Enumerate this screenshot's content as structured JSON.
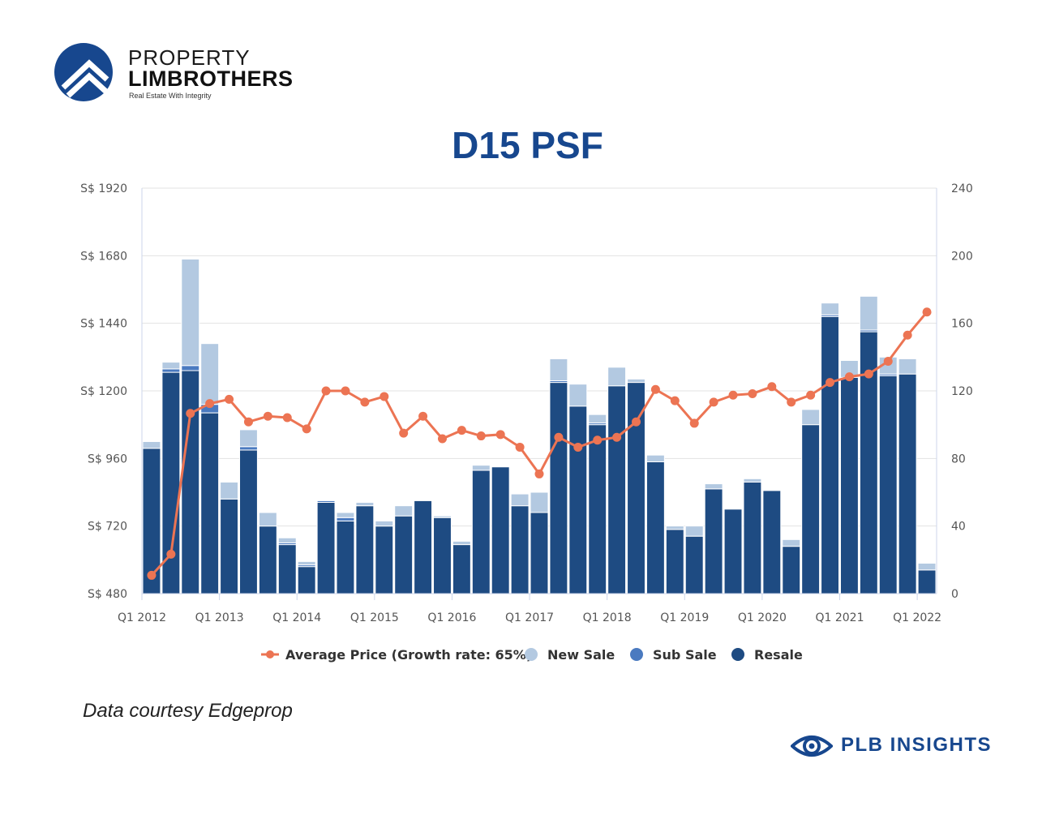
{
  "brand": {
    "line1": "PROPERTY",
    "line2": "LIMBROTHERS",
    "tagline": "Real Estate With Integrity",
    "colors": {
      "primary": "#17478e",
      "accent": "#ec7453"
    }
  },
  "page_title": "D15 PSF",
  "footer": {
    "note": "Data courtesy Edgeprop",
    "insights_label": "PLB INSIGHTS",
    "insights_icon": "eye-icon"
  },
  "chart_data": {
    "type": "bar",
    "title": "D15 PSF",
    "grid": true,
    "legend_position": "bottom",
    "x_tick_labels": [
      "Q1 2012",
      "Q1 2013",
      "Q1 2014",
      "Q1 2015",
      "Q1 2016",
      "Q1 2017",
      "Q1 2018",
      "Q1 2019",
      "Q1 2020",
      "Q1 2021",
      "Q1 2022"
    ],
    "categories": [
      "Q1 2012",
      "Q2 2012",
      "Q3 2012",
      "Q4 2012",
      "Q1 2013",
      "Q2 2013",
      "Q3 2013",
      "Q4 2013",
      "Q1 2014",
      "Q2 2014",
      "Q3 2014",
      "Q4 2014",
      "Q1 2015",
      "Q2 2015",
      "Q3 2015",
      "Q4 2015",
      "Q1 2016",
      "Q2 2016",
      "Q3 2016",
      "Q4 2016",
      "Q1 2017",
      "Q2 2017",
      "Q3 2017",
      "Q4 2017",
      "Q1 2018",
      "Q2 2018",
      "Q3 2018",
      "Q4 2018",
      "Q1 2019",
      "Q2 2019",
      "Q3 2019",
      "Q4 2019",
      "Q1 2020",
      "Q2 2020",
      "Q3 2020",
      "Q4 2020",
      "Q1 2021",
      "Q2 2021",
      "Q3 2021",
      "Q4 2021",
      "Q1 2022"
    ],
    "y_left": {
      "ticks": [
        "S$ 480",
        "S$ 720",
        "S$ 960",
        "S$ 1200",
        "S$ 1440",
        "S$ 1680",
        "S$ 1920"
      ],
      "range": [
        480,
        1920
      ]
    },
    "y_right": {
      "ticks": [
        "0",
        "40",
        "80",
        "120",
        "160",
        "200",
        "240"
      ],
      "range": [
        0,
        240
      ]
    },
    "legend": [
      {
        "name": "Average Price (Growth rate: 65%)",
        "color": "#ec7453",
        "kind": "line"
      },
      {
        "name": "New Sale",
        "color": "#b3c9e1",
        "kind": "bar"
      },
      {
        "name": "Sub Sale",
        "color": "#4a7ac0",
        "kind": "bar"
      },
      {
        "name": "Resale",
        "color": "#1e4b82",
        "kind": "bar"
      }
    ],
    "series": [
      {
        "name": "Resale",
        "axis": "right",
        "values": [
          86,
          131,
          132,
          107,
          56,
          85,
          40,
          29,
          16,
          54,
          43,
          52,
          40,
          46,
          55,
          45,
          29,
          73,
          75,
          52,
          48,
          125,
          111,
          100,
          123,
          125,
          78,
          38,
          34,
          62,
          50,
          66,
          61,
          28,
          100,
          164,
          128,
          155,
          129,
          130,
          14
        ]
      },
      {
        "name": "Sub Sale",
        "axis": "right",
        "values": [
          0,
          2,
          3,
          5,
          0,
          2,
          0,
          1,
          1,
          1,
          2,
          0,
          0,
          0,
          0,
          0,
          0,
          0,
          0,
          0,
          0,
          1,
          0,
          1,
          0,
          0,
          0,
          0,
          0,
          0,
          0,
          0,
          0,
          0,
          0,
          1,
          0,
          1,
          1,
          0,
          0
        ]
      },
      {
        "name": "New Sale",
        "axis": "right",
        "values": [
          4,
          4,
          63,
          36,
          10,
          10,
          8,
          3,
          2,
          0,
          3,
          2,
          3,
          6,
          0,
          1,
          2,
          3,
          0,
          7,
          12,
          13,
          13,
          5,
          11,
          2,
          4,
          2,
          6,
          3,
          0,
          2,
          0,
          4,
          9,
          7,
          10,
          20,
          10,
          9,
          4
        ]
      },
      {
        "name": "Average Price (Growth rate: 65%)",
        "axis": "left",
        "values": [
          545,
          620,
          1120,
          1155,
          1170,
          1090,
          1110,
          1105,
          1065,
          1200,
          1200,
          1160,
          1180,
          1050,
          1110,
          1030,
          1060,
          1040,
          1045,
          1000,
          905,
          1035,
          1000,
          1025,
          1035,
          1090,
          1205,
          1165,
          1085,
          1160,
          1185,
          1190,
          1215,
          1160,
          1185,
          1230,
          1250,
          1260,
          1305,
          1398,
          1480
        ]
      }
    ]
  }
}
